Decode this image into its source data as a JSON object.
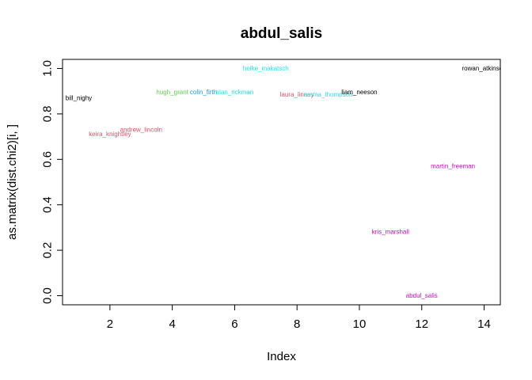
{
  "chart_data": {
    "type": "scatter",
    "title": "abdul_salis",
    "xlabel": "Index",
    "ylabel": "as.matrix(dist.chi2)[i, ]",
    "xlim": [
      0.48,
      14.52
    ],
    "ylim": [
      -0.04,
      1.04
    ],
    "x_ticks": [
      2,
      4,
      6,
      8,
      10,
      12,
      14
    ],
    "y_ticks": [
      0.0,
      0.2,
      0.4,
      0.6,
      0.8,
      1.0
    ],
    "x_tick_labels": [
      "2",
      "4",
      "6",
      "8",
      "10",
      "12",
      "14"
    ],
    "y_tick_labels": [
      "0.0",
      "0.2",
      "0.4",
      "0.6",
      "0.8",
      "1.0"
    ],
    "points": [
      {
        "label": "bill_nighy",
        "x": 1,
        "y": 0.87,
        "color": "#000000"
      },
      {
        "label": "keira_knightley",
        "x": 2,
        "y": 0.71,
        "color": "#DF536B"
      },
      {
        "label": "andrew_lincoln",
        "x": 3,
        "y": 0.73,
        "color": "#DF536B"
      },
      {
        "label": "hugh_grant",
        "x": 4,
        "y": 0.895,
        "color": "#61D04F"
      },
      {
        "label": "colin_firth",
        "x": 5,
        "y": 0.895,
        "color": "#2297E6"
      },
      {
        "label": "alan_rickman",
        "x": 6,
        "y": 0.895,
        "color": "#28E2E5"
      },
      {
        "label": "heike_makatsch",
        "x": 7,
        "y": 1.0,
        "color": "#28E2E5"
      },
      {
        "label": "laura_linney",
        "x": 8,
        "y": 0.885,
        "color": "#DF536B"
      },
      {
        "label": "emma_thompson",
        "x": 9,
        "y": 0.885,
        "color": "#28E2E5"
      },
      {
        "label": "liam_neeson",
        "x": 10,
        "y": 0.895,
        "color": "#000000"
      },
      {
        "label": "kris_marshall",
        "x": 11,
        "y": 0.28,
        "color": "#CD0BBC"
      },
      {
        "label": "abdul_salis",
        "x": 12,
        "y": 0.0,
        "color": "#CD0BBC"
      },
      {
        "label": "martin_freeman",
        "x": 13,
        "y": 0.57,
        "color": "#CD0BBC"
      },
      {
        "label": "rowan_atkinson",
        "x": 14,
        "y": 1.0,
        "color": "#000000"
      }
    ]
  }
}
